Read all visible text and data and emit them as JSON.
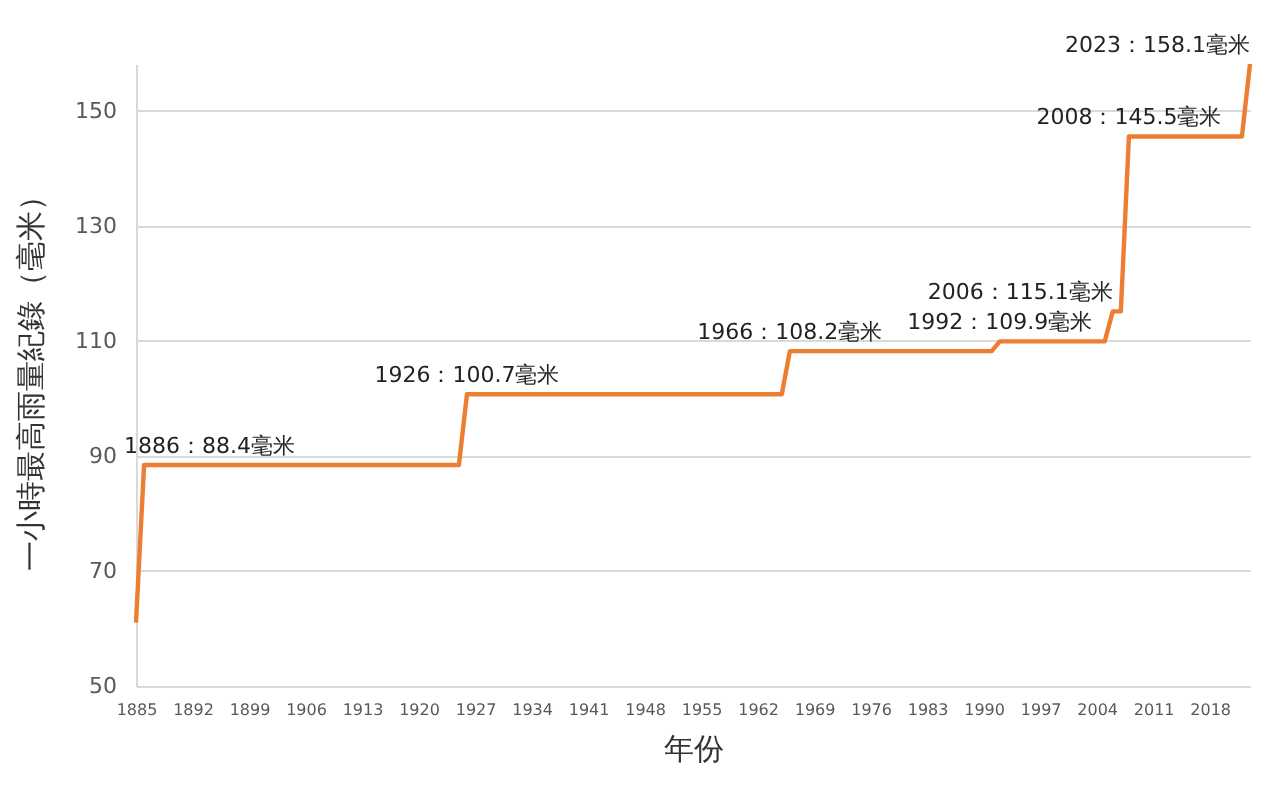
{
  "chart_data": {
    "type": "line",
    "xlabel": "年份",
    "ylabel": "一小時最高雨量紀錄（毫米）",
    "x": [
      1885,
      1886,
      1925,
      1926,
      1965,
      1966,
      1991,
      1992,
      2005,
      2006,
      2007,
      2008,
      2022,
      2023
    ],
    "series": [
      {
        "color": "#ed7d31",
        "values": [
          61,
          88.4,
          88.4,
          100.7,
          100.7,
          108.2,
          108.2,
          109.9,
          109.9,
          115.1,
          115.1,
          145.5,
          145.5,
          158.1
        ]
      }
    ],
    "xlim": [
      1885,
      2023
    ],
    "xticks": [
      1885,
      1892,
      1899,
      1906,
      1913,
      1920,
      1927,
      1934,
      1941,
      1948,
      1955,
      1962,
      1969,
      1976,
      1983,
      1990,
      1997,
      2004,
      2011,
      2018
    ],
    "ylim": [
      50,
      158.1
    ],
    "yticks": [
      50,
      70,
      90,
      110,
      130,
      150
    ],
    "grid": "y",
    "marker": "none",
    "line_style": "solid",
    "annotations": [
      {
        "text": "1886：88.4毫米",
        "x": 1886,
        "y": 88.4
      },
      {
        "text": "1926：100.7毫米",
        "x": 1926,
        "y": 100.7
      },
      {
        "text": "1966：108.2毫米",
        "x": 1966,
        "y": 108.2
      },
      {
        "text": "1992：109.9毫米",
        "x": 1992,
        "y": 109.9
      },
      {
        "text": "2006：115.1毫米",
        "x": 2006,
        "y": 115.1
      },
      {
        "text": "2008：145.5毫米",
        "x": 2008,
        "y": 145.5
      },
      {
        "text": "2023：158.1毫米",
        "x": 2023,
        "y": 158.1
      }
    ]
  }
}
